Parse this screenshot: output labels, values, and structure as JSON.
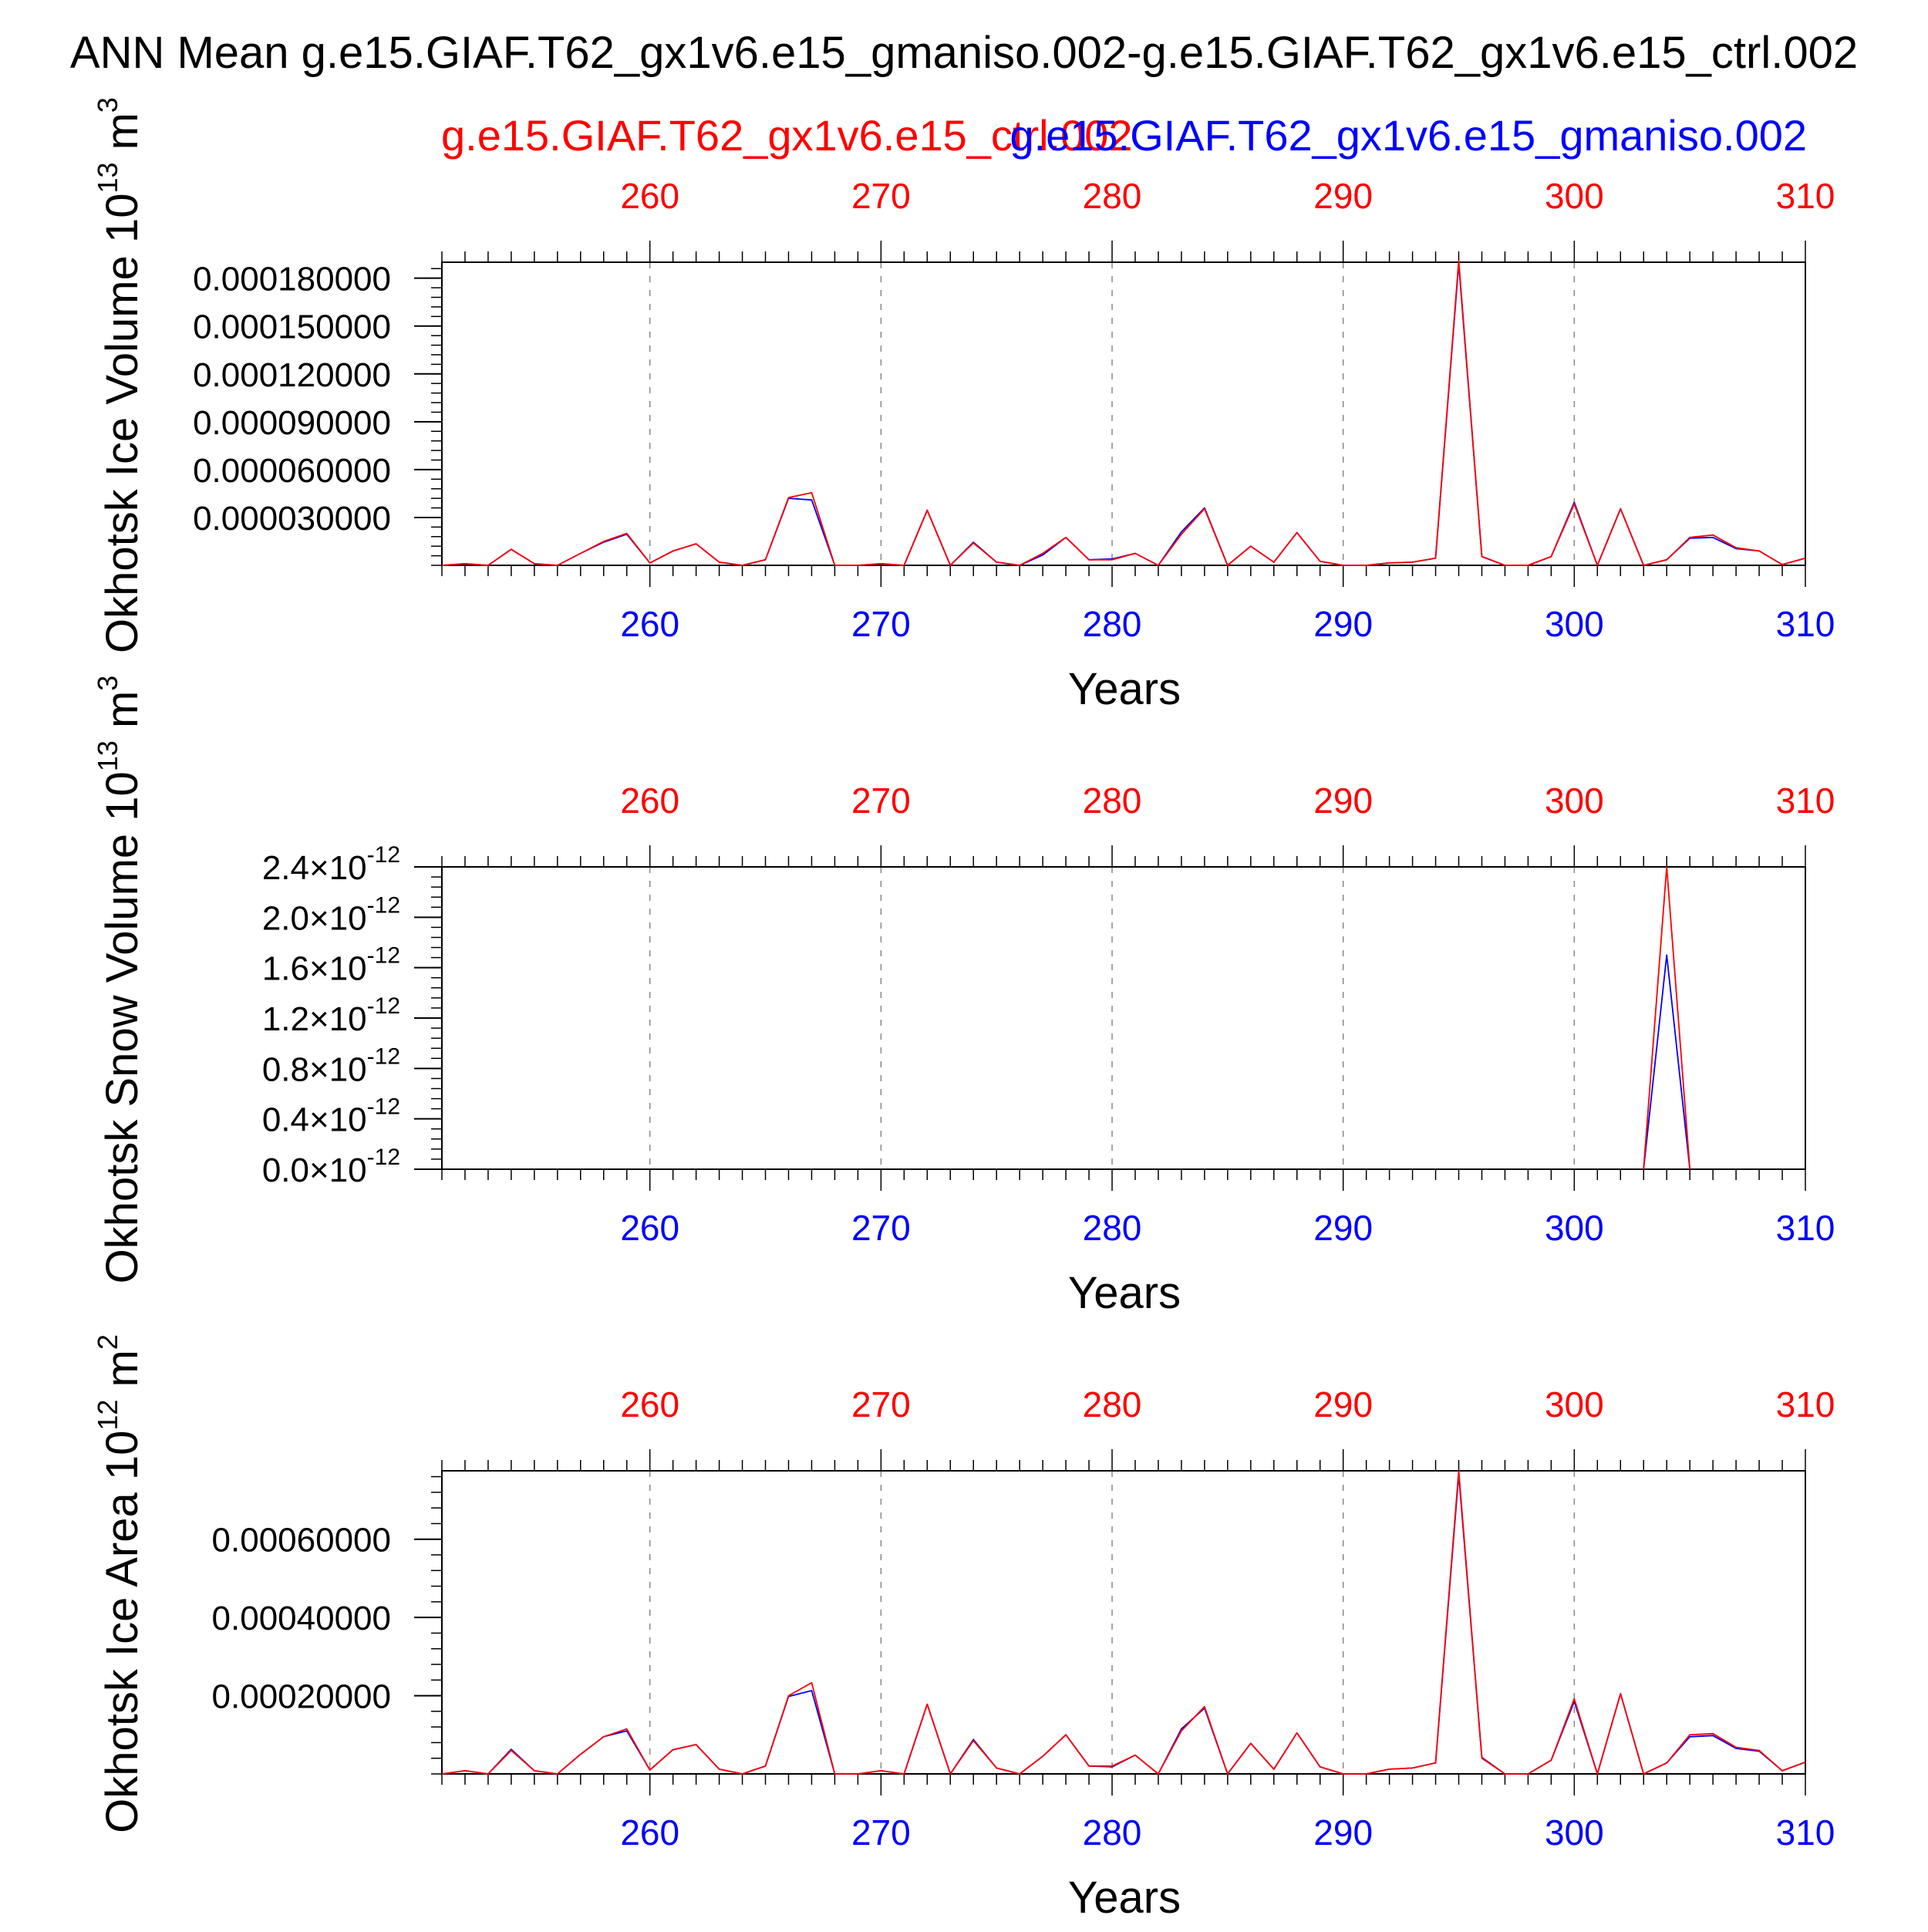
{
  "title": "ANN Mean g.e15.GIAF.T62_gx1v6.e15_gmaniso.002-g.e15.GIAF.T62_gx1v6.e15_ctrl.002",
  "legend": {
    "ctrl": "g.e15.GIAF.T62_gx1v6.e15_ctrl.002",
    "gmaniso": "g.e15.GIAF.T62_gx1v6.e15_gmaniso.002"
  },
  "colors": {
    "ctrl": "#ff0000",
    "gmaniso": "#0000ff",
    "axis": "#000000",
    "grid": "#888888"
  },
  "chart_data": [
    {
      "type": "line",
      "ylabel": "Okhotsk Ice Volume 10",
      "ylabel_sup": "13",
      "ylabel_unit": "m",
      "ylabel_unit_sup": "3",
      "xlabel": "Years",
      "xlim": [
        251,
        310
      ],
      "ylim": [
        0,
        0.00019
      ],
      "x_ticks": [
        260,
        270,
        280,
        290,
        300,
        310
      ],
      "y_ticks": [
        {
          "value": 3e-05,
          "label": "0.000030000"
        },
        {
          "value": 6e-05,
          "label": "0.000060000"
        },
        {
          "value": 9e-05,
          "label": "0.000090000"
        },
        {
          "value": 0.00012,
          "label": "0.000120000"
        },
        {
          "value": 0.00015,
          "label": "0.000150000"
        },
        {
          "value": 0.00018,
          "label": "0.000180000"
        }
      ],
      "x": [
        251,
        252,
        253,
        254,
        255,
        256,
        257,
        258,
        259,
        260,
        261,
        262,
        263,
        264,
        265,
        266,
        267,
        268,
        269,
        270,
        271,
        272,
        273,
        274,
        275,
        276,
        277,
        278,
        279,
        280,
        281,
        282,
        283,
        284,
        285,
        286,
        287,
        288,
        289,
        290,
        291,
        292,
        293,
        294,
        295,
        296,
        297,
        298,
        299,
        300,
        301,
        302,
        303,
        304,
        305,
        306,
        307,
        308,
        309,
        310
      ],
      "series": [
        {
          "name": "g.e15.GIAF.T62_gx1v6.e15_ctrl.002",
          "values": [
            0,
            1e-06,
            0,
            1e-05,
            1e-06,
            0,
            7.5e-06,
            1.5e-05,
            2e-05,
            1.5e-06,
            9e-06,
            1.35e-05,
            2e-06,
            0,
            3.5e-06,
            4.25e-05,
            4.55e-05,
            0,
            0,
            1e-06,
            0,
            3.45e-05,
            0,
            1.4e-05,
            2e-06,
            0,
            7.5e-06,
            1.75e-05,
            3.5e-06,
            3.5e-06,
            7.5e-06,
            0,
            1.95e-05,
            3.55e-05,
            0,
            1.2e-05,
            2e-06,
            2.05e-05,
            2.5e-06,
            0,
            0,
            1.5e-06,
            2e-06,
            4.5e-06,
            0.000191,
            5.5e-06,
            0,
            0,
            5.5e-06,
            3.85e-05,
            0,
            3.55e-05,
            0,
            3.5e-06,
            1.75e-05,
            1.9e-05,
            1.1e-05,
            9e-06,
            5e-07,
            4.5e-06
          ]
        },
        {
          "name": "g.e15.GIAF.T62_gx1v6.e15_gmaniso.002",
          "values": [
            0,
            1e-06,
            0,
            1e-05,
            1e-06,
            0,
            7.5e-06,
            1.45e-05,
            1.95e-05,
            1.5e-06,
            9e-06,
            1.35e-05,
            2e-06,
            0,
            3.5e-06,
            4.2e-05,
            4.1e-05,
            0,
            0,
            1e-06,
            0,
            3.45e-05,
            0,
            1.45e-05,
            2e-06,
            0,
            6.5e-06,
            1.75e-05,
            3.5e-06,
            4e-06,
            7.5e-06,
            0,
            2.1e-05,
            3.6e-05,
            0,
            1.2e-05,
            2e-06,
            2.05e-05,
            2.5e-06,
            0,
            0,
            1.5e-06,
            2e-06,
            4.5e-06,
            0.000189,
            5.5e-06,
            0,
            0,
            5.5e-06,
            3.95e-05,
            0,
            3.55e-05,
            0,
            3.5e-06,
            1.7e-05,
            1.75e-05,
            1.05e-05,
            9e-06,
            5e-07,
            4.5e-06
          ]
        }
      ]
    },
    {
      "type": "line",
      "ylabel": "Okhotsk Snow Volume 10",
      "ylabel_sup": "13",
      "ylabel_unit": "m",
      "ylabel_unit_sup": "3",
      "xlabel": "Years",
      "xlim": [
        251,
        310
      ],
      "ylim": [
        0,
        2.4e-12
      ],
      "x_ticks": [
        260,
        270,
        280,
        290,
        300,
        310
      ],
      "y_ticks": [
        {
          "value": 0,
          "label": "0.0",
          "exp": "-12"
        },
        {
          "value": 4e-13,
          "label": "0.4",
          "exp": "-12"
        },
        {
          "value": 8e-13,
          "label": "0.8",
          "exp": "-12"
        },
        {
          "value": 1.2e-12,
          "label": "1.2",
          "exp": "-12"
        },
        {
          "value": 1.6e-12,
          "label": "1.6",
          "exp": "-12"
        },
        {
          "value": 2e-12,
          "label": "2.0",
          "exp": "-12"
        },
        {
          "value": 2.4e-12,
          "label": "2.4",
          "exp": "-12"
        }
      ],
      "y_tick_sci_sep": "×10",
      "x": [
        303,
        304,
        305
      ],
      "series": [
        {
          "name": "g.e15.GIAF.T62_gx1v6.e15_ctrl.002",
          "values": [
            0,
            2.4e-12,
            0
          ]
        },
        {
          "name": "g.e15.GIAF.T62_gx1v6.e15_gmaniso.002",
          "values": [
            0,
            1.7e-12,
            0
          ]
        }
      ]
    },
    {
      "type": "line",
      "ylabel": "Okhotsk Ice Area 10",
      "ylabel_sup": "12",
      "ylabel_unit": "m",
      "ylabel_unit_sup": "2",
      "xlabel": "Years",
      "xlim": [
        251,
        310
      ],
      "ylim": [
        0,
        0.000775
      ],
      "x_ticks": [
        260,
        270,
        280,
        290,
        300,
        310
      ],
      "y_ticks": [
        {
          "value": 0.0002,
          "label": "0.00020000"
        },
        {
          "value": 0.0004,
          "label": "0.00040000"
        },
        {
          "value": 0.0006,
          "label": "0.00060000"
        }
      ],
      "x": [
        251,
        252,
        253,
        254,
        255,
        256,
        257,
        258,
        259,
        260,
        261,
        262,
        263,
        264,
        265,
        266,
        267,
        268,
        269,
        270,
        271,
        272,
        273,
        274,
        275,
        276,
        277,
        278,
        279,
        280,
        281,
        282,
        283,
        284,
        285,
        286,
        287,
        288,
        289,
        290,
        291,
        292,
        293,
        294,
        295,
        296,
        297,
        298,
        299,
        300,
        301,
        302,
        303,
        304,
        305,
        306,
        307,
        308,
        309,
        310
      ],
      "series": [
        {
          "name": "g.e15.GIAF.T62_gx1v6.e15_ctrl.002",
          "values": [
            0,
            8e-06,
            0,
            6e-05,
            8e-06,
            0,
            5e-05,
            9.5e-05,
            0.000115,
            1e-05,
            6.2e-05,
            7.5e-05,
            1.2e-05,
            0,
            2e-05,
            0.0002,
            0.000233,
            0,
            0,
            8e-06,
            0,
            0.000178,
            0,
            8.5e-05,
            1.5e-05,
            0,
            4.5e-05,
            0.0001,
            2e-05,
            2e-05,
            4.8e-05,
            0,
            0.00011,
            0.000172,
            0,
            7.8e-05,
            1.2e-05,
            0.000105,
            1.8e-05,
            0,
            0,
            1.2e-05,
            1.5e-05,
            2.8e-05,
            0.000775,
            4e-05,
            0,
            0,
            3.5e-05,
            0.000192,
            0,
            0.000205,
            0,
            2.8e-05,
            0.0001,
            0.000103,
            6.8e-05,
            6e-05,
            8e-06,
            3e-05
          ]
        },
        {
          "name": "g.e15.GIAF.T62_gx1v6.e15_gmaniso.002",
          "values": [
            0,
            8e-06,
            0,
            6.3e-05,
            8e-06,
            0,
            5e-05,
            9.5e-05,
            0.00011,
            1e-05,
            6.2e-05,
            7.5e-05,
            1.2e-05,
            0,
            2e-05,
            0.000198,
            0.000213,
            0,
            0,
            8e-06,
            0,
            0.000178,
            0,
            8.8e-05,
            1.5e-05,
            0,
            4.5e-05,
            0.0001,
            2e-05,
            1.8e-05,
            4.8e-05,
            0,
            0.000115,
            0.000168,
            0,
            7.8e-05,
            1.2e-05,
            0.000105,
            1.8e-05,
            0,
            0,
            1.2e-05,
            1.5e-05,
            2.8e-05,
            0.000765,
            4.2e-05,
            0,
            0,
            3.5e-05,
            0.000185,
            0,
            0.000205,
            0,
            2.8e-05,
            9.5e-05,
            9.8e-05,
            6.5e-05,
            5.8e-05,
            8e-06,
            3e-05
          ]
        }
      ]
    }
  ]
}
